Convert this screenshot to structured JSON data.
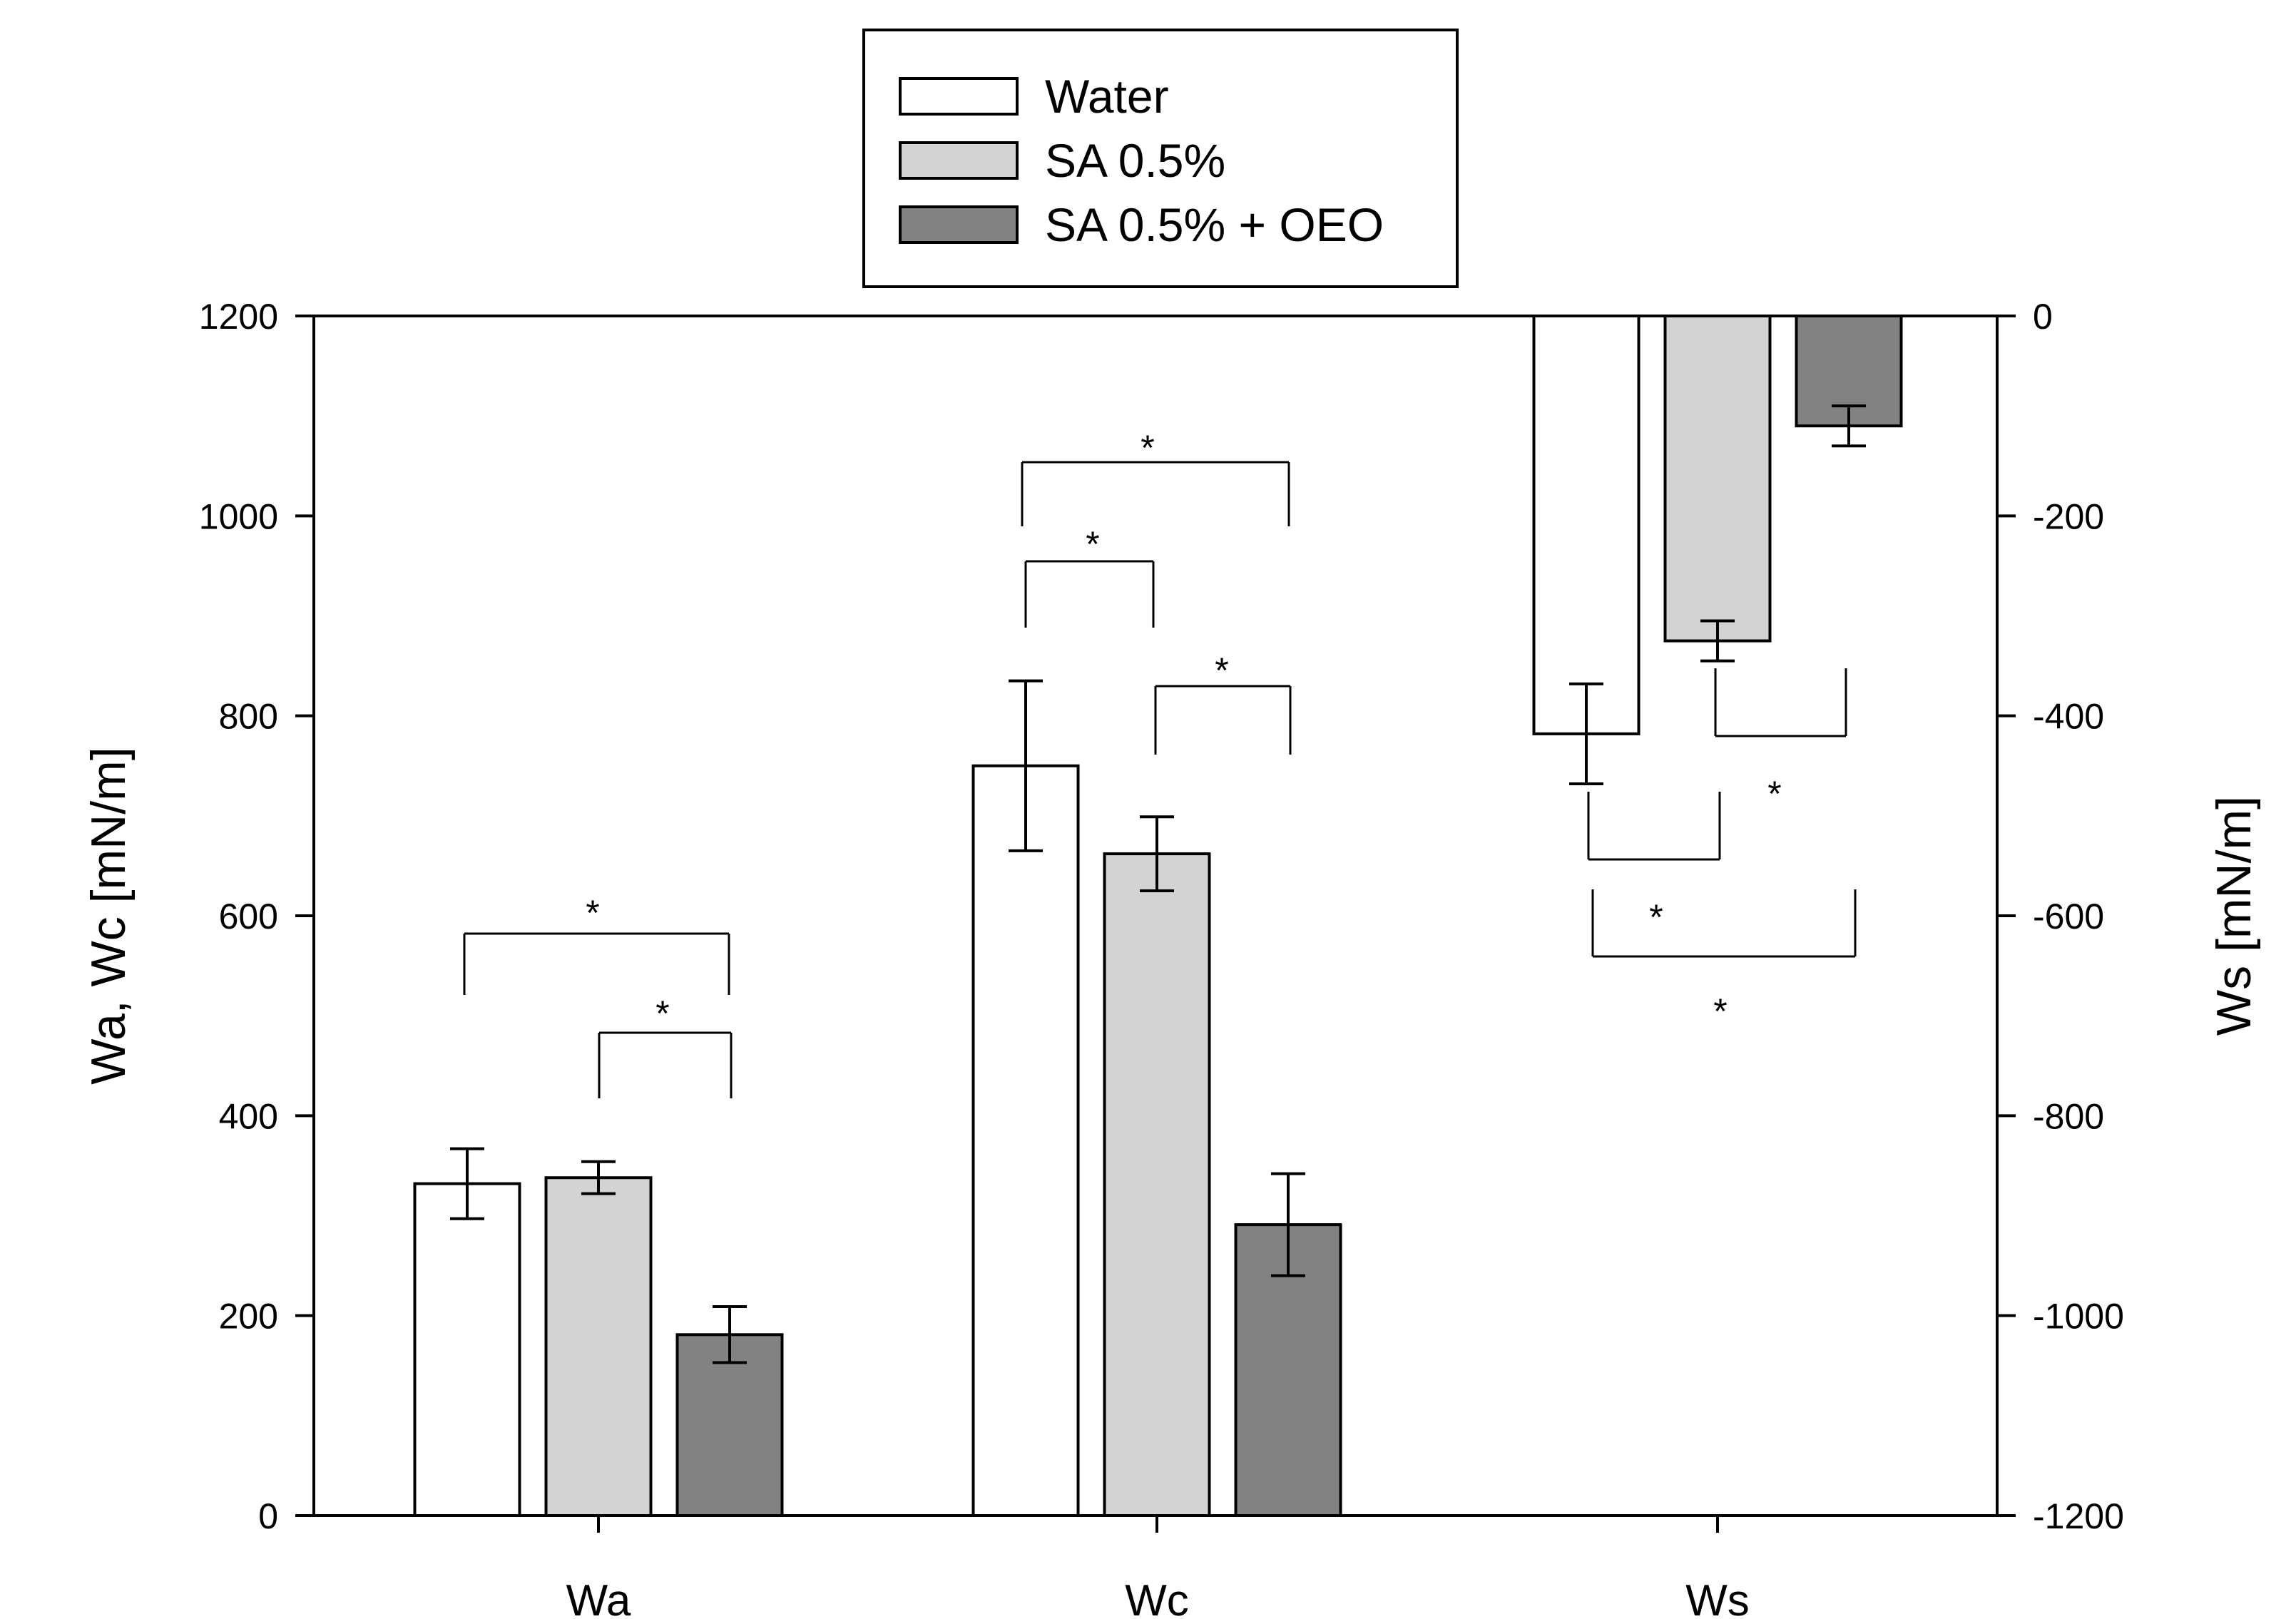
{
  "chart_data": {
    "type": "bar",
    "categories": [
      "Wa",
      "Wc",
      "Ws"
    ],
    "series": [
      {
        "name": "Water",
        "color": "#ffffff",
        "values": [
          332,
          750,
          -418
        ],
        "errors": [
          35,
          85,
          50
        ]
      },
      {
        "name": "SA 0.5%",
        "color": "#d3d3d3",
        "values": [
          338,
          662,
          -325
        ],
        "errors": [
          16,
          37,
          20
        ]
      },
      {
        "name": "SA 0.5% + OEO",
        "color": "#828282",
        "values": [
          181,
          291,
          -110
        ],
        "errors": [
          28,
          51,
          20
        ]
      }
    ],
    "left_axis": {
      "label": "Wa, Wc [mN/m]",
      "ylim": [
        0,
        1200
      ],
      "ticks": [
        "0",
        "200",
        "400",
        "600",
        "800",
        "1000",
        "1200"
      ]
    },
    "right_axis": {
      "label": "Ws [mN/m]",
      "ylim": [
        -1200,
        0
      ],
      "ticks": [
        "-1200",
        "-1000",
        "-800",
        "-600",
        "-400",
        "-200",
        "0"
      ],
      "applies_to_category": "Ws"
    },
    "significance": [
      {
        "category": "Wa",
        "from_series": 0,
        "to_series": 2,
        "label": "*"
      },
      {
        "category": "Wa",
        "from_series": 1,
        "to_series": 2,
        "label": "*"
      },
      {
        "category": "Wc",
        "from_series": 0,
        "to_series": 2,
        "label": "*"
      },
      {
        "category": "Wc",
        "from_series": 0,
        "to_series": 1,
        "label": "*"
      },
      {
        "category": "Wc",
        "from_series": 1,
        "to_series": 2,
        "label": "*"
      },
      {
        "category": "Ws",
        "from_series": 1,
        "to_series": 2,
        "label": "*"
      },
      {
        "category": "Ws",
        "from_series": 0,
        "to_series": 1,
        "label": "*"
      },
      {
        "category": "Ws",
        "from_series": 0,
        "to_series": 2,
        "label": "*"
      }
    ],
    "legend_position": "top-center",
    "grid": false
  }
}
